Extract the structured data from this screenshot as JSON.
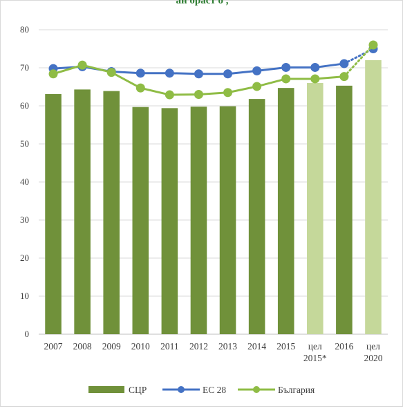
{
  "chart_title_fragment": "ан  ораст  о     ,   ",
  "chart_data": {
    "type": "bar",
    "categories": [
      "2007",
      "2008",
      "2009",
      "2010",
      "2011",
      "2012",
      "2013",
      "2014",
      "2015",
      "цел\n2015*",
      "2016",
      "цел\n2020"
    ],
    "ylim": [
      0,
      80
    ],
    "yticks": [
      0,
      10,
      20,
      30,
      40,
      50,
      60,
      70,
      80
    ],
    "grid": true,
    "legend_position": "bottom",
    "bar_series": {
      "name": "СЦР",
      "values": [
        63.1,
        64.3,
        63.9,
        59.7,
        59.4,
        59.8,
        59.9,
        61.8,
        64.7,
        66.0,
        65.3,
        72.0
      ],
      "color": "#70913a",
      "target_color": "#c5d89a",
      "target_indices": [
        9,
        11
      ]
    },
    "line_series": [
      {
        "name": "ЕС 28",
        "values": [
          69.8,
          70.3,
          69.0,
          68.6,
          68.6,
          68.4,
          68.4,
          69.2,
          70.1,
          70.1,
          71.1,
          75.0
        ],
        "color": "#4472c4",
        "dotted_from_index": 10
      },
      {
        "name": "България",
        "values": [
          68.4,
          70.7,
          68.8,
          64.7,
          62.9,
          63.0,
          63.5,
          65.1,
          67.1,
          67.1,
          67.7,
          76.0
        ],
        "color": "#8fbc45",
        "dotted_from_index": 10
      }
    ]
  }
}
